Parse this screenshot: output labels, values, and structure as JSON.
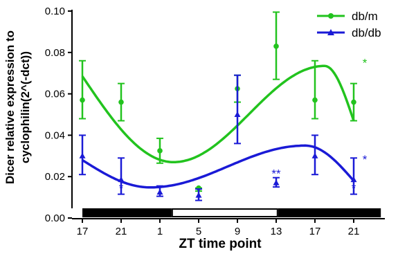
{
  "chart_data": {
    "type": "line",
    "title": "",
    "xlabel": "ZT time point",
    "ylabel": "Dicer relative expression to cyclophilin(2^(-dct))",
    "ylabel_lines": [
      "Dicer relative expression to",
      "cyclophilin(2^(-dct))"
    ],
    "x_tick_labels": [
      "17",
      "21",
      "1",
      "5",
      "9",
      "13",
      "17",
      "21"
    ],
    "y_ticks": [
      "0.00",
      "0.02",
      "0.04",
      "0.06",
      "0.08",
      "0.10"
    ],
    "ylim": [
      0,
      0.1
    ],
    "grid": false,
    "legend_position": "top-right",
    "light_dark_bar": [
      {
        "phase": "dark",
        "from_index": 0,
        "to_index": 2.3
      },
      {
        "phase": "light",
        "from_index": 2.3,
        "to_index": 5.05
      },
      {
        "phase": "dark",
        "from_index": 5.05,
        "to_index": 7.7
      }
    ],
    "series": [
      {
        "name": "db/m",
        "color": "#22c31e",
        "marker": "circle",
        "mean": [
          0.057,
          0.056,
          0.0325,
          0.0145,
          0.0625,
          0.083,
          0.057,
          0.056
        ],
        "err_low": [
          0.048,
          0.047,
          0.0265,
          0.013,
          0.056,
          0.067,
          0.048,
          0.047
        ],
        "err_high": [
          0.076,
          0.065,
          0.0385,
          0.0145,
          0.069,
          0.0995,
          0.076,
          0.065
        ],
        "fit_peak_x": 6.25,
        "fit_trough_x": 2.35,
        "fit_start": 0.0685,
        "fit_end": 0.047,
        "fit_peak": 0.0735,
        "fit_trough": 0.027,
        "annotations": [
          {
            "index": 7,
            "text": "*",
            "offset_x": 16,
            "y": 0.073
          }
        ]
      },
      {
        "name": "db/db",
        "color": "#1a1ad6",
        "marker": "triangle",
        "mean": [
          0.03,
          0.0185,
          0.0125,
          0.011,
          0.05,
          0.017,
          0.03,
          0.0185
        ],
        "err_low": [
          0.021,
          0.0115,
          0.0105,
          0.0085,
          0.036,
          0.015,
          0.021,
          0.0115
        ],
        "err_high": [
          0.04,
          0.029,
          0.0155,
          0.014,
          0.069,
          0.0195,
          0.04,
          0.029
        ],
        "fit_peak_x": 5.75,
        "fit_trough_x": 1.75,
        "fit_start": 0.028,
        "fit_end": 0.018,
        "fit_peak": 0.035,
        "fit_trough": 0.0148,
        "annotations": [
          {
            "index": 1,
            "text": "*",
            "offset_x": 0,
            "y": 0.0125
          },
          {
            "index": 5,
            "text": "**",
            "offset_x": 0,
            "y": 0.0195
          },
          {
            "index": 7,
            "text": "*",
            "offset_x": 0,
            "y": 0.0125
          },
          {
            "index": 7,
            "text": "*",
            "offset_x": 16,
            "y": 0.0265
          }
        ]
      }
    ]
  }
}
